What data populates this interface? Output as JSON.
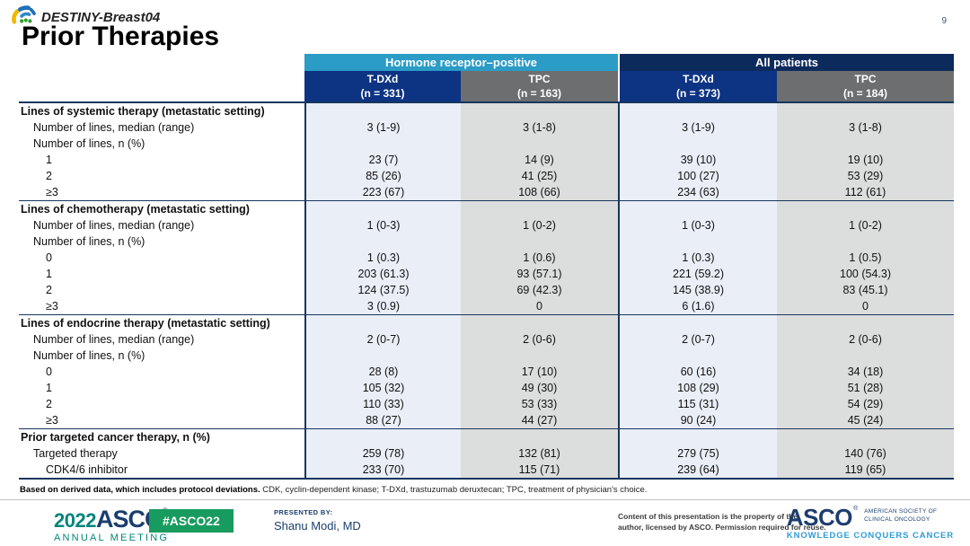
{
  "slide": {
    "brand": "DESTINY-Breast04",
    "title": "Prior Therapies",
    "page_number": "9"
  },
  "icons": {
    "destiny_logo": "colored-fan-arcs",
    "registered_mark": "®"
  },
  "colors": {
    "group_hr_positive": "#2a9cc6",
    "group_all_patients": "#0d2a5c",
    "col_tdxd_header": "#0d3383",
    "col_tpc_header": "#6d6e70",
    "col_tdxd_bg": "#eaeef7",
    "col_tpc_bg": "#dcdddd",
    "table_border": "#17365d",
    "hashtag_green": "#189b5e",
    "asco_navy": "#1c3e6e",
    "asco_teal": "#00857b",
    "tagline_blue": "#2f9cd8"
  },
  "table": {
    "groups": [
      {
        "label": "Hormone receptor–positive"
      },
      {
        "label": "All patients"
      }
    ],
    "columns": [
      {
        "name": "T-DXd",
        "n": "(n = 331)"
      },
      {
        "name": "TPC",
        "n": "(n = 163)"
      },
      {
        "name": "T-DXd",
        "n": "(n = 373)"
      },
      {
        "name": "TPC",
        "n": "(n = 184)"
      }
    ],
    "sections": [
      {
        "title": "Lines of systemic therapy (metastatic setting)",
        "rows": [
          {
            "label": "Number of lines, median (range)",
            "indent": 1,
            "values": [
              "3 (1-9)",
              "3 (1-8)",
              "3 (1-9)",
              "3 (1-8)"
            ]
          },
          {
            "label": "Number of lines, n (%)",
            "indent": 1,
            "values": [
              "",
              "",
              "",
              ""
            ]
          },
          {
            "label": "1",
            "indent": 2,
            "values": [
              "23 (7)",
              "14 (9)",
              "39 (10)",
              "19 (10)"
            ]
          },
          {
            "label": "2",
            "indent": 2,
            "values": [
              "85 (26)",
              "41 (25)",
              "100 (27)",
              "53 (29)"
            ]
          },
          {
            "label": "≥3",
            "indent": 2,
            "values": [
              "223 (67)",
              "108 (66)",
              "234 (63)",
              "112 (61)"
            ]
          }
        ]
      },
      {
        "title": "Lines of chemotherapy (metastatic setting)",
        "rows": [
          {
            "label": "Number of lines, median (range)",
            "indent": 1,
            "values": [
              "1 (0-3)",
              "1 (0-2)",
              "1 (0-3)",
              "1 (0-2)"
            ]
          },
          {
            "label": "Number of lines, n (%)",
            "indent": 1,
            "values": [
              "",
              "",
              "",
              ""
            ]
          },
          {
            "label": "0",
            "indent": 2,
            "values": [
              "1 (0.3)",
              "1 (0.6)",
              "1 (0.3)",
              "1 (0.5)"
            ]
          },
          {
            "label": "1",
            "indent": 2,
            "values": [
              "203 (61.3)",
              "93 (57.1)",
              "221 (59.2)",
              "100 (54.3)"
            ]
          },
          {
            "label": "2",
            "indent": 2,
            "values": [
              "124 (37.5)",
              "69 (42.3)",
              "145 (38.9)",
              "83 (45.1)"
            ]
          },
          {
            "label": "≥3",
            "indent": 2,
            "values": [
              "3 (0.9)",
              "0",
              "6 (1.6)",
              "0"
            ]
          }
        ]
      },
      {
        "title": "Lines of endocrine therapy (metastatic setting)",
        "rows": [
          {
            "label": "Number of lines, median (range)",
            "indent": 1,
            "values": [
              "2 (0-7)",
              "2 (0-6)",
              "2 (0-7)",
              "2 (0-6)"
            ]
          },
          {
            "label": "Number of lines, n (%)",
            "indent": 1,
            "values": [
              "",
              "",
              "",
              ""
            ]
          },
          {
            "label": "0",
            "indent": 2,
            "values": [
              "28 (8)",
              "17 (10)",
              "60 (16)",
              "34 (18)"
            ]
          },
          {
            "label": "1",
            "indent": 2,
            "values": [
              "105 (32)",
              "49 (30)",
              "108 (29)",
              "51 (28)"
            ]
          },
          {
            "label": "2",
            "indent": 2,
            "values": [
              "110 (33)",
              "53 (33)",
              "115 (31)",
              "54 (29)"
            ]
          },
          {
            "label": "≥3",
            "indent": 2,
            "values": [
              "88 (27)",
              "44 (27)",
              "90 (24)",
              "45 (24)"
            ]
          }
        ]
      },
      {
        "title": "Prior targeted cancer therapy, n (%)",
        "rows": [
          {
            "label": "Targeted therapy",
            "indent": 1,
            "values": [
              "259 (78)",
              "132 (81)",
              "279 (75)",
              "140 (76)"
            ]
          },
          {
            "label": "CDK4/6 inhibitor",
            "indent": 2,
            "values": [
              "233 (70)",
              "115 (71)",
              "239 (64)",
              "119 (65)"
            ]
          }
        ]
      }
    ]
  },
  "footnote": {
    "bold": "Based on derived data, which includes protocol deviations.",
    "rest": " CDK, cyclin-dependent kinase; T-DXd, trastuzumab deruxtecan; TPC, treatment of physician's choice."
  },
  "footer": {
    "meeting_year": "2022",
    "meeting_org": "ASCO",
    "meeting_name": "ANNUAL MEETING",
    "hashtag": "#ASCO22",
    "presented_by_label": "PRESENTED BY:",
    "presenter": "Shanu Modi, MD",
    "disclaimer_line1": "Content of this presentation is the property of the",
    "disclaimer_line2": "author, licensed by ASCO. Permission required for reuse.",
    "asco_word": "ASCO",
    "society_line1": "AMERICAN SOCIETY OF",
    "society_line2": "CLINICAL ONCOLOGY",
    "tagline": "KNOWLEDGE CONQUERS CANCER"
  }
}
